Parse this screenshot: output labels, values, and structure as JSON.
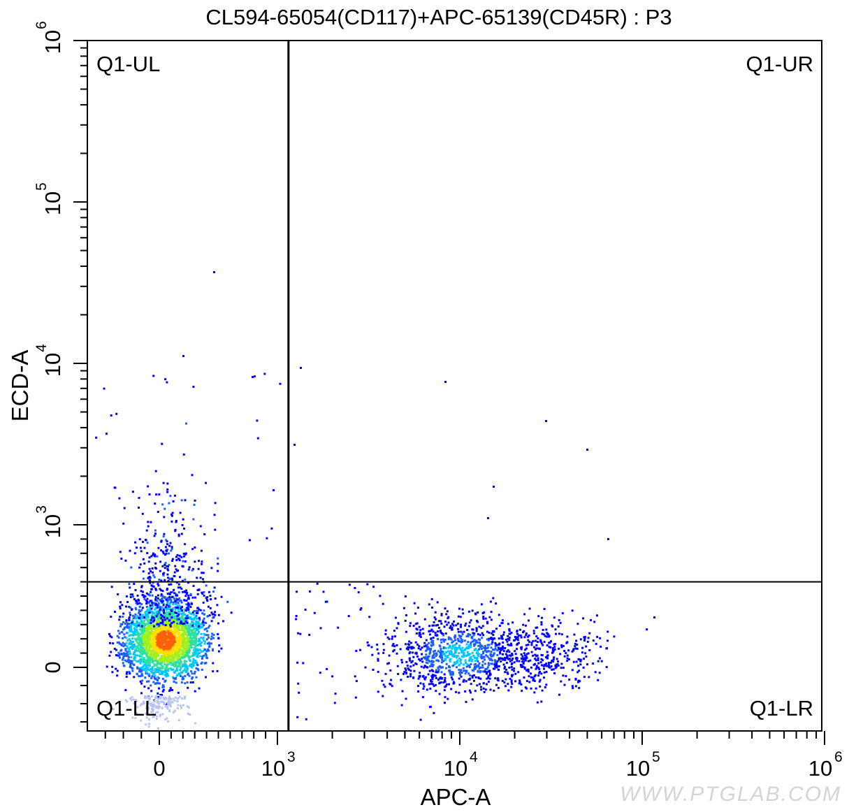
{
  "chart_data": {
    "type": "scatter",
    "title": "CL594-65054(CD117)+APC-65139(CD45R) : P3",
    "xlabel": "APC-A",
    "ylabel": "ECD-A",
    "x_scale": "biexponential",
    "y_scale": "biexponential",
    "xlim": [
      -400,
      1000000
    ],
    "ylim": [
      -350,
      1000000
    ],
    "x_ticks": [
      {
        "value": 0,
        "base": "0",
        "exp": ""
      },
      {
        "value": 1000,
        "base": "10",
        "exp": "3"
      },
      {
        "value": 10000,
        "base": "10",
        "exp": "4"
      },
      {
        "value": 100000,
        "base": "10",
        "exp": "5"
      },
      {
        "value": 1000000,
        "base": "10",
        "exp": "6"
      }
    ],
    "y_ticks": [
      {
        "value": 0,
        "base": "0",
        "exp": ""
      },
      {
        "value": 1000,
        "base": "10",
        "exp": "3"
      },
      {
        "value": 10000,
        "base": "10",
        "exp": "4"
      },
      {
        "value": 100000,
        "base": "10",
        "exp": "5"
      },
      {
        "value": 1000000,
        "base": "10",
        "exp": "6"
      }
    ],
    "gates": {
      "x_threshold": 1150,
      "y_threshold": 600
    },
    "quadrant_labels": {
      "ul": "Q1-UL",
      "ur": "Q1-UR",
      "ll": "Q1-LL",
      "lr": "Q1-LR"
    },
    "populations": [
      {
        "name": "",
        "x_center": 0,
        "y_center": 0,
        "count": 2600
      },
      {
        "name": "",
        "x_center": 10000,
        "y_center": 0,
        "count": 1300
      }
    ],
    "density_colors": [
      "#0000ff",
      "#1a5cff",
      "#00c8ff",
      "#30e0a0",
      "#a0f020",
      "#ffe000",
      "#ff6000",
      "#ff0000"
    ],
    "grid": false,
    "legend": "none"
  },
  "watermark": "WWW.PTGLAB.COM"
}
